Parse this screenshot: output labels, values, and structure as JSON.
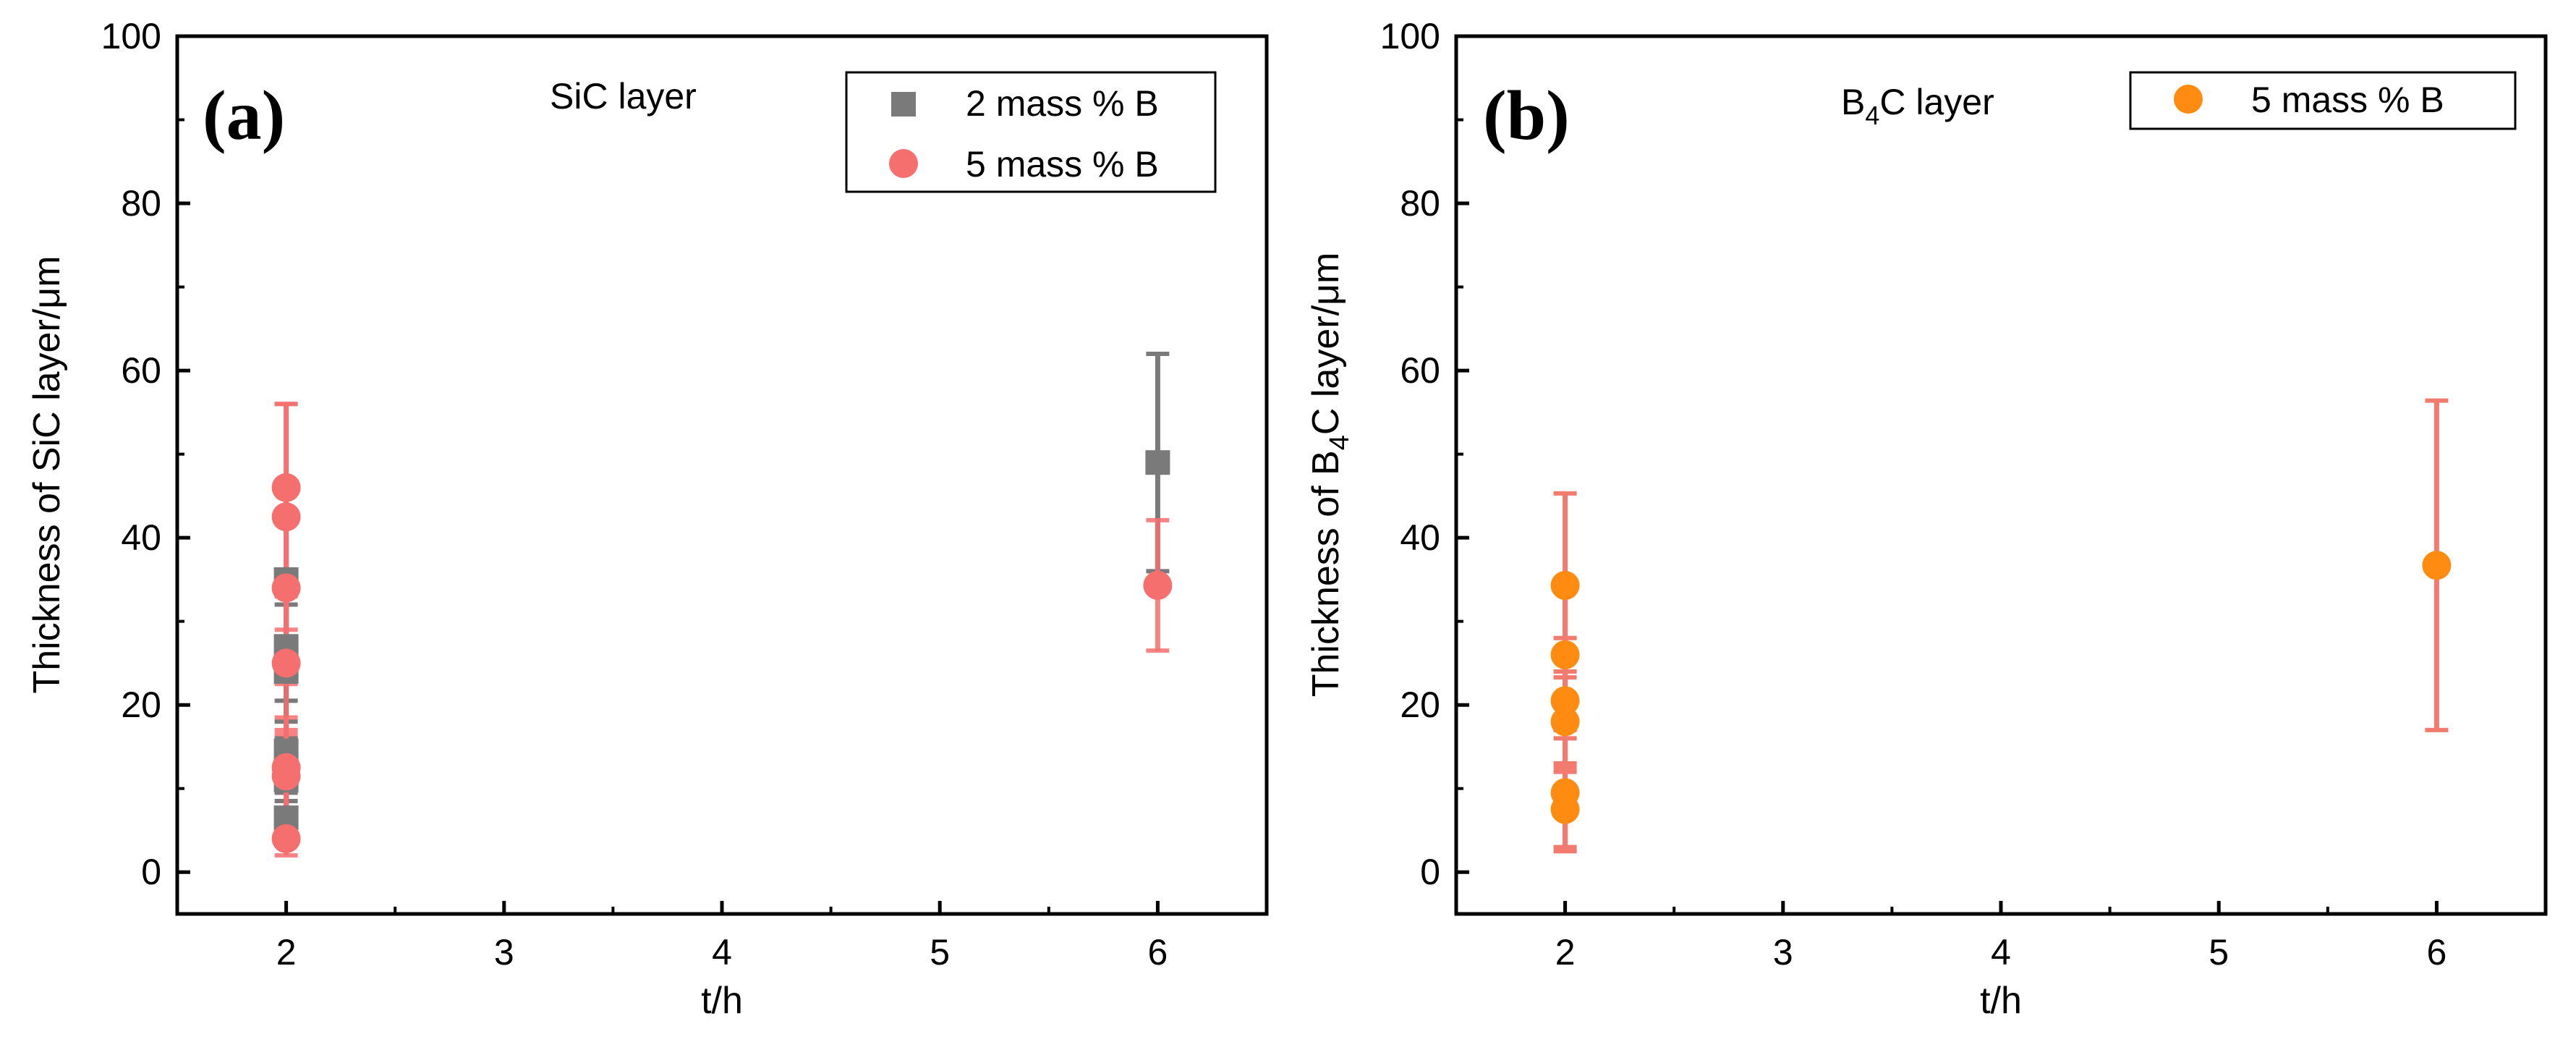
{
  "chart_data": [
    {
      "panel_label": "(a)",
      "type": "scatter",
      "annotation": "SiC layer",
      "xlabel": "t/h",
      "ylabel": "Thickness of SiC layer/μm",
      "xlim": [
        1.5,
        6.5
      ],
      "ylim": [
        -5,
        100
      ],
      "x_ticks": [
        2,
        3,
        4,
        5,
        6
      ],
      "y_ticks": [
        0,
        20,
        40,
        60,
        80,
        100
      ],
      "legend_position": "top-right",
      "series": [
        {
          "name": "2 mass % B",
          "marker": "square",
          "color": "#7a7a7a",
          "points": [
            {
              "x": 2,
              "y": 35.0,
              "err": 11.0
            },
            {
              "x": 2,
              "y": 27.0,
              "err": 9.0
            },
            {
              "x": 2,
              "y": 24.0,
              "err": 8.0
            },
            {
              "x": 2,
              "y": 14.5,
              "err": 6.0
            },
            {
              "x": 2,
              "y": 11.0,
              "err": 5.0
            },
            {
              "x": 2,
              "y": 6.5,
              "err": 3.0
            },
            {
              "x": 6,
              "y": 49.0,
              "err": 13.0
            }
          ]
        },
        {
          "name": "5 mass % B",
          "marker": "circle",
          "color": "#f56f6f",
          "points": [
            {
              "x": 2,
              "y": 46.0,
              "err": 10.0
            },
            {
              "x": 2,
              "y": 42.5,
              "err": 13.5
            },
            {
              "x": 2,
              "y": 34.0,
              "err": 11.5
            },
            {
              "x": 2,
              "y": 25.0,
              "err": 8.0
            },
            {
              "x": 2,
              "y": 12.5,
              "err": 6.0
            },
            {
              "x": 2,
              "y": 11.5,
              "err": 5.0
            },
            {
              "x": 2,
              "y": 4.0,
              "err": 2.0
            },
            {
              "x": 6,
              "y": 34.3,
              "err": 7.8
            }
          ]
        }
      ]
    },
    {
      "panel_label": "(b)",
      "type": "scatter",
      "annotation": "B4C layer",
      "xlabel": "t/h",
      "ylabel": "Thickness of B4C layer/μm",
      "xlim": [
        1.5,
        6.5
      ],
      "ylim": [
        -5,
        100
      ],
      "x_ticks": [
        2,
        3,
        4,
        5,
        6
      ],
      "y_ticks": [
        0,
        20,
        40,
        60,
        80,
        100
      ],
      "legend_position": "top-right",
      "series": [
        {
          "name": "5 mass % B",
          "marker": "circle",
          "color": "#ff8c10",
          "error_color": "#f17b6f",
          "points": [
            {
              "x": 2,
              "y": 34.3,
              "err": 11.0
            },
            {
              "x": 2,
              "y": 26.0,
              "err": 9.0
            },
            {
              "x": 2,
              "y": 20.5,
              "err": 7.5
            },
            {
              "x": 2,
              "y": 18.0,
              "err": 6.0
            },
            {
              "x": 2,
              "y": 9.5,
              "err": 6.5
            },
            {
              "x": 2,
              "y": 7.5,
              "err": 5.0
            },
            {
              "x": 6,
              "y": 36.7,
              "err": 19.7
            }
          ]
        }
      ]
    }
  ]
}
